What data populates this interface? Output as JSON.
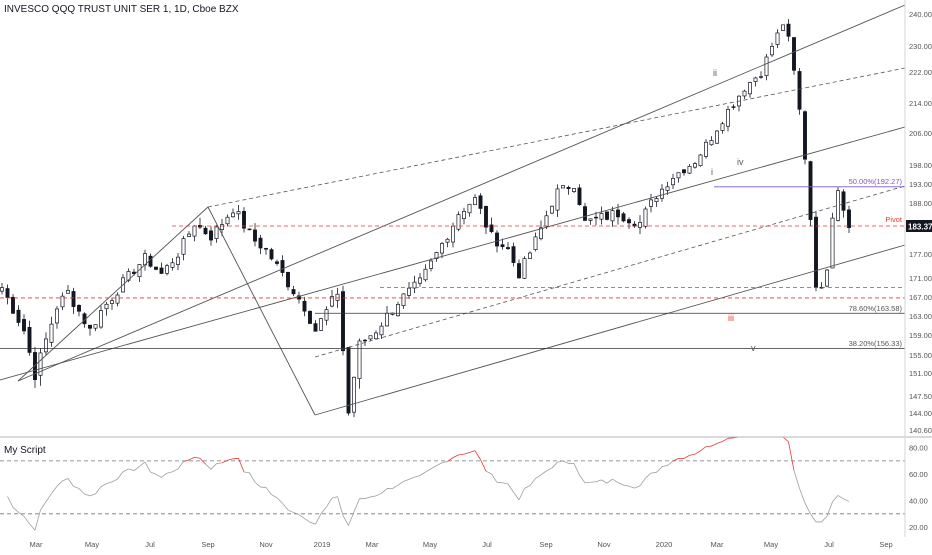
{
  "header": {
    "title": "INVESCO QQQ TRUST UNIT SER 1, 1D, Cboe BZX"
  },
  "oscillator": {
    "title": "My Script"
  },
  "colors": {
    "candle": "#131722",
    "channel": "#555555",
    "dash_red": "#e53935",
    "fib_purple": "#7e57c2",
    "rsi_line": "#9e9e9e",
    "rsi_hot": "#e53935",
    "axis_text": "#555555"
  },
  "chart_data": [
    {
      "type": "candlestick",
      "title": "INVESCO QQQ TRUST UNIT SER 1, 1D, Cboe BZX",
      "y_axis_ticks": [
        240.0,
        230.0,
        222.0,
        214.0,
        206.0,
        198.0,
        193.0,
        188.0,
        183.37,
        177.0,
        171.0,
        167.0,
        163.0,
        159.0,
        155.0,
        151.0,
        147.5,
        144.0,
        140.6
      ],
      "y_axis_labels": [
        "240.00",
        "230.00",
        "222.00",
        "214.00",
        "206.00",
        "198.00",
        "193.00",
        "188.00",
        "183.37",
        "177.00",
        "171.00",
        "167.00",
        "163.00",
        "159.00",
        "155.00",
        "151.00",
        "147.50",
        "144.00",
        "140.60"
      ],
      "x_axis_labels": [
        "Mar",
        "May",
        "Jul",
        "Sep",
        "Nov",
        "2019",
        "Mar",
        "May",
        "Jul",
        "Sep",
        "Nov",
        "2020",
        "Mar",
        "May",
        "Jul",
        "Sep"
      ],
      "current_price": "183.37",
      "price_path": [
        [
          0,
          169
        ],
        [
          4,
          160
        ],
        [
          6,
          151
        ],
        [
          10,
          165
        ],
        [
          12,
          168
        ],
        [
          16,
          160
        ],
        [
          18,
          164
        ],
        [
          22,
          170
        ],
        [
          26,
          176
        ],
        [
          29,
          172
        ],
        [
          32,
          177
        ],
        [
          35,
          184
        ],
        [
          38,
          181
        ],
        [
          42,
          187
        ],
        [
          46,
          180
        ],
        [
          48,
          178
        ],
        [
          52,
          170
        ],
        [
          55,
          165
        ],
        [
          57,
          160
        ],
        [
          61,
          168
        ],
        [
          63,
          144
        ],
        [
          65,
          157
        ],
        [
          68,
          160
        ],
        [
          72,
          166
        ],
        [
          76,
          170
        ],
        [
          79,
          177
        ],
        [
          83,
          186
        ],
        [
          86,
          189
        ],
        [
          89,
          181
        ],
        [
          92,
          178
        ],
        [
          94,
          172
        ],
        [
          97,
          180
        ],
        [
          101,
          191
        ],
        [
          104,
          193
        ],
        [
          106,
          184
        ],
        [
          109,
          185
        ],
        [
          112,
          186
        ],
        [
          116,
          184
        ],
        [
          119,
          190
        ],
        [
          122,
          195
        ],
        [
          126,
          199
        ],
        [
          129,
          205
        ],
        [
          132,
          212
        ],
        [
          135,
          218
        ],
        [
          138,
          222
        ],
        [
          140,
          230
        ],
        [
          142,
          237
        ],
        [
          143,
          232
        ],
        [
          144,
          222
        ],
        [
          145,
          212
        ],
        [
          146,
          200
        ],
        [
          147,
          185
        ],
        [
          148,
          170
        ],
        [
          149,
          168
        ],
        [
          150,
          174
        ],
        [
          151,
          186
        ],
        [
          152,
          192
        ],
        [
          153,
          187
        ],
        [
          154,
          183
        ]
      ],
      "annotations": [
        {
          "text": "ii",
          "type": "wave_label"
        },
        {
          "text": "i",
          "type": "wave_label"
        },
        {
          "text": "iv",
          "type": "wave_label"
        },
        {
          "text": "iii",
          "type": "wave_label"
        },
        {
          "text": "v",
          "type": "wave_label"
        },
        {
          "text": "Pivot",
          "type": "level",
          "price": 183.37
        },
        {
          "text": "50.00%(192.27)",
          "type": "fib",
          "price": 192.27
        },
        {
          "text": "78.60%(163.58)",
          "type": "fib",
          "price": 163.58
        },
        {
          "text": "38.20%(156.33)",
          "type": "fib",
          "price": 156.33
        }
      ],
      "dashed_levels": [
        183.37,
        169.0,
        166.8
      ],
      "grid": false
    },
    {
      "type": "line",
      "title": "My Script",
      "y_axis_labels": [
        "80.00",
        "60.00",
        "40.00",
        "20.00"
      ],
      "y_axis_ticks": [
        80,
        60,
        40,
        20
      ],
      "ylim": [
        14,
        88
      ],
      "reference_lines": [
        70,
        30
      ],
      "overbought_threshold": 70
    }
  ]
}
